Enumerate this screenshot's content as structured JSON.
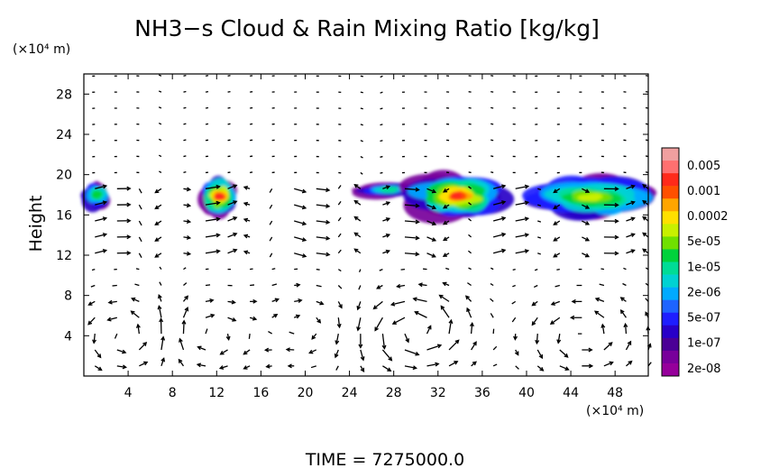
{
  "chart_data": {
    "type": "heatmap",
    "title": "NH3−s Cloud & Rain Mixing Ratio [kg/kg]",
    "xlabel": "",
    "ylabel": "Height",
    "x_unit": "(×10⁴ m)",
    "y_unit": "(×10⁴ m)",
    "xlim": [
      0,
      51
    ],
    "ylim": [
      0,
      30
    ],
    "xticks": [
      4,
      8,
      12,
      16,
      20,
      24,
      28,
      32,
      36,
      40,
      44,
      48
    ],
    "yticks": [
      4,
      8,
      12,
      16,
      20,
      24,
      28
    ],
    "footer": "TIME  =  7275000.0",
    "colorbar": {
      "labels": [
        "0.005",
        "0.001",
        "0.0002",
        "5e-05",
        "1e-05",
        "2e-06",
        "5e-07",
        "1e-07",
        "2e-08"
      ],
      "colors": [
        "#f0a0a0",
        "#ff7070",
        "#ff2a1a",
        "#ff5000",
        "#ffa500",
        "#ffe000",
        "#c8f000",
        "#70e000",
        "#00d23c",
        "#00dc96",
        "#00d2d2",
        "#00aaff",
        "#1e64ff",
        "#1e1eff",
        "#2800c8",
        "#4b0096",
        "#78009b",
        "#96009b"
      ]
    },
    "cloud_regions": [
      {
        "x_range": [
          0,
          2.5
        ],
        "z_range": [
          16.5,
          19.5
        ],
        "peak": "1e-05"
      },
      {
        "x_range": [
          10.5,
          14
        ],
        "z_range": [
          15.8,
          19.8
        ],
        "peak": "0.001"
      },
      {
        "x_range": [
          25,
          30
        ],
        "z_range": [
          17.8,
          19.2
        ],
        "peak": "2e-06"
      },
      {
        "x_range": [
          30,
          37.5
        ],
        "z_range": [
          15.8,
          20
        ],
        "peak": "0.001"
      },
      {
        "x_range": [
          40.5,
          51
        ],
        "z_range": [
          15.8,
          19.8
        ],
        "peak": "5e-05"
      }
    ],
    "wind_vectors": "velocity arrows over the full domain; strong circulation cells near x=28-32 and x=3-5, x=10-12, x=43-47 below z=10"
  }
}
